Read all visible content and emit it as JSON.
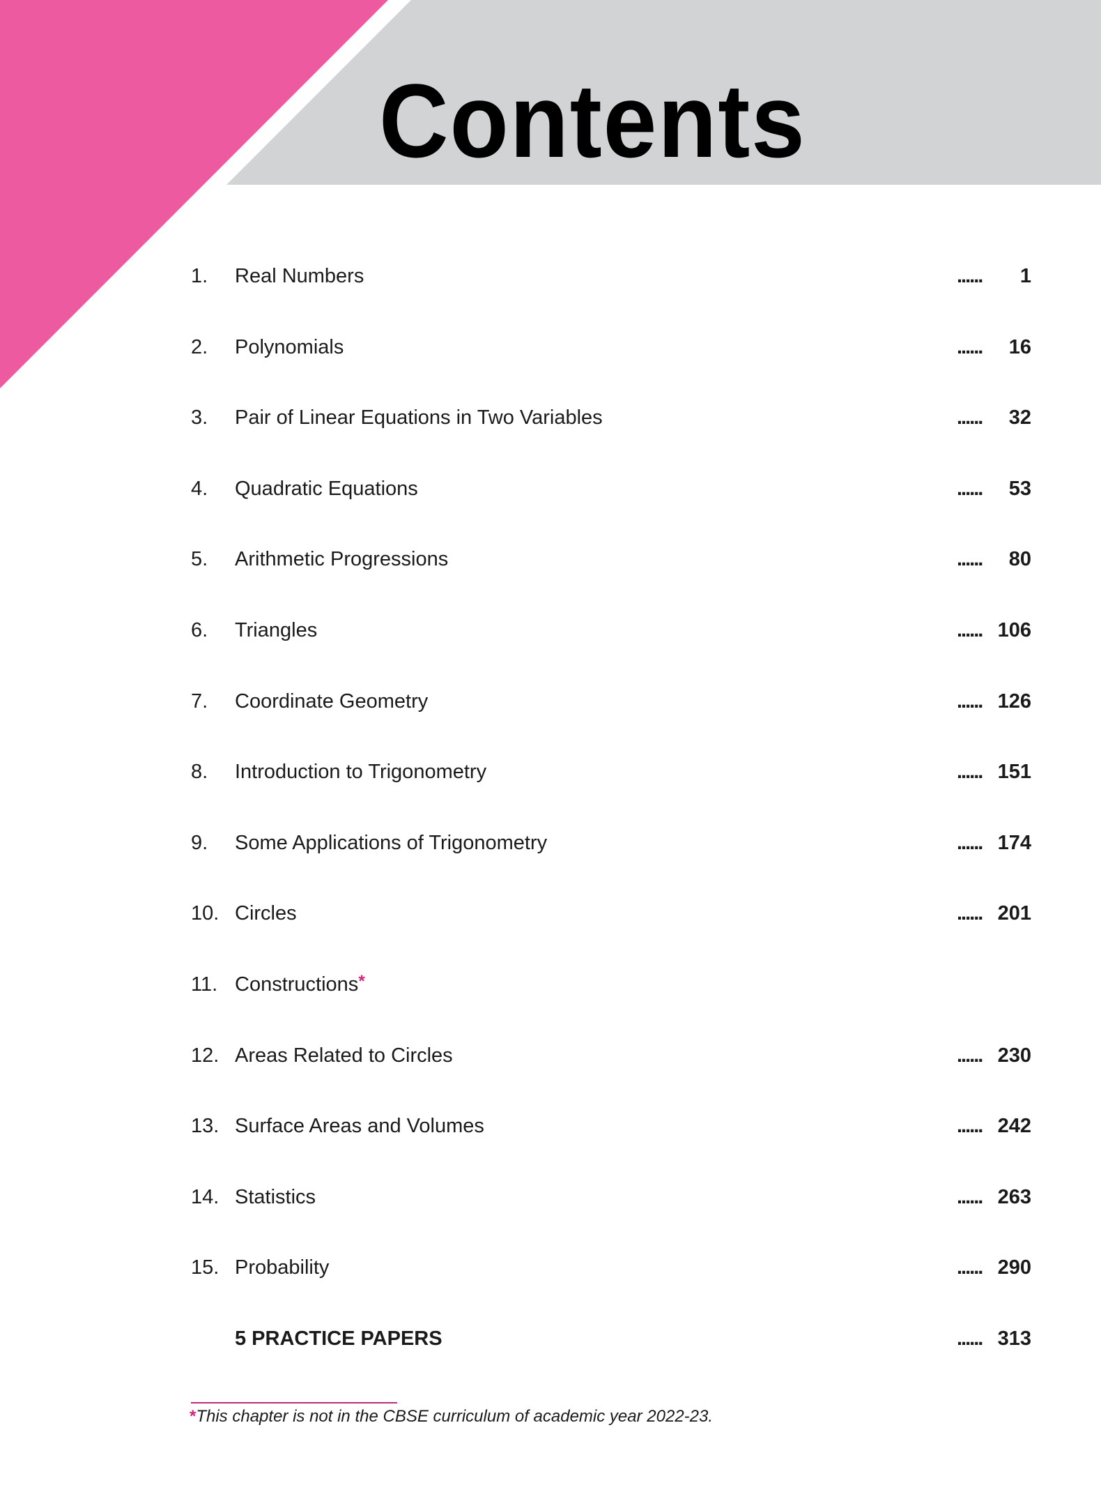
{
  "header": {
    "title": "Contents",
    "colors": {
      "accent_pink": "#ee5a9f",
      "band_gray": "#d1d3d4"
    }
  },
  "toc": [
    {
      "number": "1.",
      "title": "Real Numbers",
      "dots": "......",
      "page": "1"
    },
    {
      "number": "2.",
      "title": "Polynomials",
      "dots": "......",
      "page": "16"
    },
    {
      "number": "3.",
      "title": "Pair of Linear Equations in  Two Variables",
      "dots": "......",
      "page": "32"
    },
    {
      "number": "4.",
      "title": "Quadratic Equations",
      "dots": "......",
      "page": "53"
    },
    {
      "number": "5.",
      "title": "Arithmetic Progressions",
      "dots": "......",
      "page": "80"
    },
    {
      "number": "6.",
      "title": "Triangles",
      "dots": "......",
      "page": "106"
    },
    {
      "number": "7.",
      "title": "Coordinate Geometry",
      "dots": "......",
      "page": "126"
    },
    {
      "number": "8.",
      "title": "Introduction to Trigonometry",
      "dots": "......",
      "page": "151"
    },
    {
      "number": "9.",
      "title": "Some Applications of Trigonometry",
      "dots": "......",
      "page": "174"
    },
    {
      "number": "10.",
      "title": "Circles",
      "dots": "......",
      "page": "201"
    },
    {
      "number": "11.",
      "title": "Constructions",
      "marker": "*",
      "dots": "",
      "page": ""
    },
    {
      "number": "12.",
      "title": "Areas Related to Circles",
      "dots": "......",
      "page": "230"
    },
    {
      "number": "13.",
      "title": "Surface Areas and Volumes",
      "dots": "......",
      "page": "242"
    },
    {
      "number": "14.",
      "title": "Statistics",
      "dots": "......",
      "page": "263"
    },
    {
      "number": "15.",
      "title": "Probability",
      "dots": "......",
      "page": "290"
    },
    {
      "number": "",
      "title": "5 PRACTICE PAPERS",
      "bold": true,
      "dots": "......",
      "page": "313"
    }
  ],
  "footnote": {
    "marker": "*",
    "text": "This chapter is not in the CBSE curriculum of academic year 2022-23."
  }
}
